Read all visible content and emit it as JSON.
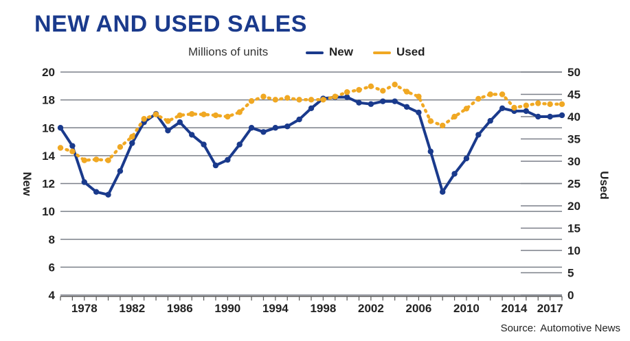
{
  "chart_data": {
    "type": "line",
    "title": "NEW AND USED SALES",
    "subtitle": "Millions of units",
    "source_label": "Source:",
    "source": "Automotive News",
    "left_axis_label": "New",
    "right_axis_label": "Used",
    "ylim_left": [
      4,
      20
    ],
    "ylim_right": [
      0,
      50
    ],
    "yticks_left": [
      4,
      6,
      8,
      10,
      12,
      14,
      16,
      18,
      20
    ],
    "yticks_right": [
      0,
      5,
      10,
      15,
      20,
      25,
      30,
      35,
      40,
      45,
      50
    ],
    "xticks": [
      1978,
      1982,
      1986,
      1990,
      1994,
      1998,
      2002,
      2006,
      2010,
      2014,
      2017
    ],
    "x": [
      1976,
      1977,
      1978,
      1979,
      1980,
      1981,
      1982,
      1983,
      1984,
      1985,
      1986,
      1987,
      1988,
      1989,
      1990,
      1991,
      1992,
      1993,
      1994,
      1995,
      1996,
      1997,
      1998,
      1999,
      2000,
      2001,
      2002,
      2003,
      2004,
      2005,
      2006,
      2007,
      2008,
      2009,
      2010,
      2011,
      2012,
      2013,
      2014,
      2015,
      2016,
      2017,
      2018
    ],
    "series": [
      {
        "name": "New",
        "axis": "left",
        "color": "#1a3a8c",
        "style": "solid",
        "values": [
          16.0,
          14.7,
          12.1,
          11.4,
          11.2,
          12.9,
          14.9,
          16.4,
          17.0,
          15.8,
          16.4,
          15.5,
          14.8,
          13.3,
          13.7,
          14.8,
          16.0,
          15.7,
          16.0,
          16.1,
          16.6,
          17.4,
          18.1,
          18.2,
          18.2,
          17.8,
          17.7,
          17.9,
          17.9,
          17.5,
          17.1,
          14.3,
          11.4,
          12.7,
          13.8,
          15.5,
          16.5,
          17.4,
          17.2,
          17.2,
          16.8,
          16.8,
          16.9
        ]
      },
      {
        "name": "Used",
        "axis": "right",
        "color": "#f0a823",
        "style": "dotted",
        "values": [
          33.0,
          32.2,
          30.2,
          30.4,
          30.2,
          33.2,
          35.5,
          39.5,
          40.5,
          39.0,
          40.3,
          40.6,
          40.5,
          40.3,
          40.0,
          41.0,
          43.5,
          44.5,
          43.8,
          44.2,
          43.8,
          43.8,
          43.8,
          44.5,
          45.5,
          46.0,
          46.8,
          45.8,
          47.2,
          45.6,
          44.5,
          39.0,
          38.0,
          40.0,
          41.8,
          44.0,
          45.0,
          45.0,
          42.0,
          42.5,
          43.0,
          42.8,
          42.8
        ]
      }
    ]
  }
}
